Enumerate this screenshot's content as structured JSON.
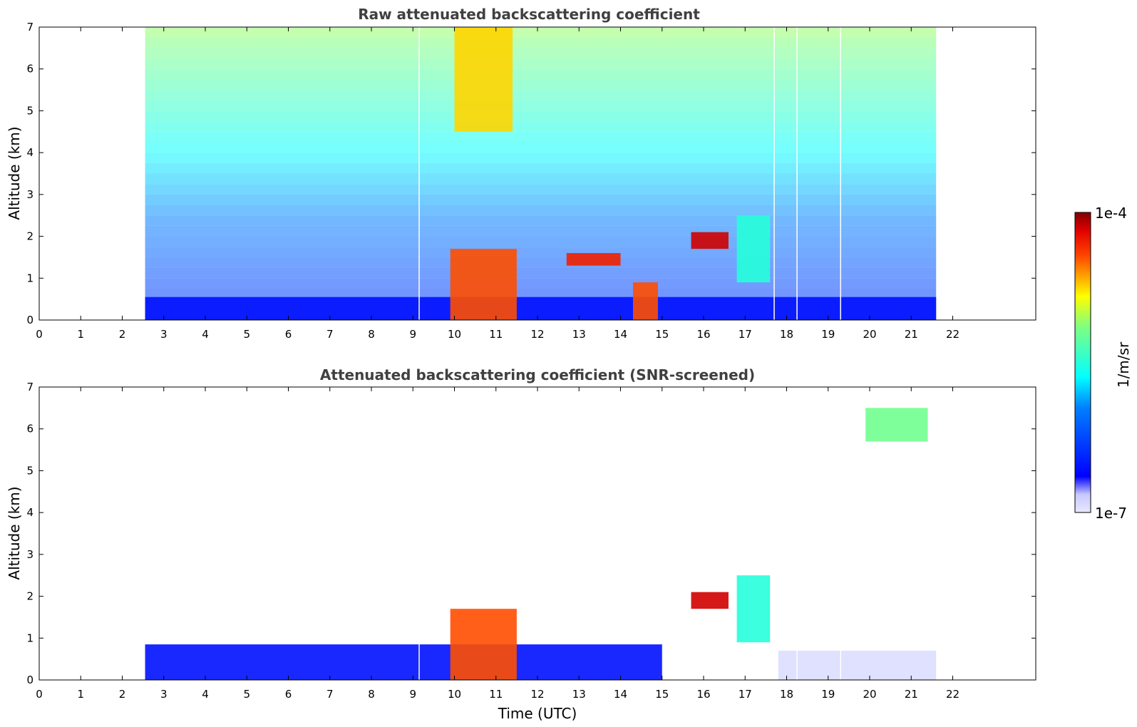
{
  "chart_data": [
    {
      "type": "heatmap",
      "title": "Raw attenuated backscattering coefficient",
      "xlabel": "",
      "ylabel": "Altitude (km)",
      "xlim": [
        0,
        24
      ],
      "ylim": [
        0,
        7
      ],
      "xticks": [
        "0",
        "1",
        "2",
        "3",
        "4",
        "5",
        "6",
        "7",
        "8",
        "9",
        "10",
        "11",
        "12",
        "13",
        "14",
        "15",
        "16",
        "17",
        "18",
        "19",
        "20",
        "21",
        "22"
      ],
      "yticks": [
        "0",
        "1",
        "2",
        "3",
        "4",
        "5",
        "6",
        "7"
      ],
      "data_time_range": [
        2.55,
        21.6
      ],
      "features": [
        {
          "time": [
            2.55,
            21.6
          ],
          "altitude": [
            0,
            0.55
          ],
          "level": 0.15
        },
        {
          "time": [
            9.9,
            11.5
          ],
          "altitude": [
            0,
            1.7
          ],
          "level": 0.85
        },
        {
          "time": [
            14.3,
            14.9
          ],
          "altitude": [
            0,
            0.9
          ],
          "level": 0.85
        },
        {
          "time": [
            15.7,
            16.6
          ],
          "altitude": [
            1.7,
            2.1
          ],
          "level": 0.95
        },
        {
          "time": [
            12.7,
            14.0
          ],
          "altitude": [
            1.3,
            1.6
          ],
          "level": 0.9
        },
        {
          "time": [
            16.8,
            17.6
          ],
          "altitude": [
            0.9,
            2.5
          ],
          "level": 0.5
        },
        {
          "time": [
            10.0,
            11.4
          ],
          "altitude": [
            4.5,
            7.0
          ],
          "level": 0.75
        }
      ],
      "gaps_time": [
        9.15,
        17.7,
        18.25,
        19.3
      ]
    },
    {
      "type": "heatmap",
      "title": "Attenuated backscattering coefficient (SNR-screened)",
      "xlabel": "Time (UTC)",
      "ylabel": "Altitude (km)",
      "xlim": [
        0,
        24
      ],
      "ylim": [
        0,
        7
      ],
      "xticks": [
        "0",
        "1",
        "2",
        "3",
        "4",
        "5",
        "6",
        "7",
        "8",
        "9",
        "10",
        "11",
        "12",
        "13",
        "14",
        "15",
        "16",
        "17",
        "18",
        "19",
        "20",
        "21",
        "22"
      ],
      "yticks": [
        "0",
        "1",
        "2",
        "3",
        "4",
        "5",
        "6",
        "7"
      ],
      "data_time_range": [
        2.55,
        21.6
      ],
      "features": [
        {
          "time": [
            2.55,
            15.0
          ],
          "altitude": [
            0,
            0.85
          ],
          "level": 0.15
        },
        {
          "time": [
            17.8,
            21.6
          ],
          "altitude": [
            0,
            0.7
          ],
          "level": 0.02
        },
        {
          "time": [
            9.9,
            11.5
          ],
          "altitude": [
            0,
            1.7
          ],
          "level": 0.85
        },
        {
          "time": [
            15.7,
            16.6
          ],
          "altitude": [
            1.7,
            2.1
          ],
          "level": 0.95
        },
        {
          "time": [
            16.8,
            17.6
          ],
          "altitude": [
            0.9,
            2.5
          ],
          "level": 0.5
        },
        {
          "time": [
            19.9,
            21.4
          ],
          "altitude": [
            5.7,
            6.5
          ],
          "level": 0.6
        }
      ],
      "gaps_time": [
        9.15,
        17.7,
        18.25,
        19.3
      ]
    }
  ],
  "colorbar": {
    "label": "1/m/sr",
    "max_label": "1e-4",
    "min_label": "1e-7",
    "range": [
      1e-07,
      0.0001
    ],
    "scale": "log",
    "colormap": "jet",
    "colors": [
      "#e8e8ff",
      "#0000ff",
      "#00ffff",
      "#ffff00",
      "#ff0000",
      "#800000"
    ]
  }
}
